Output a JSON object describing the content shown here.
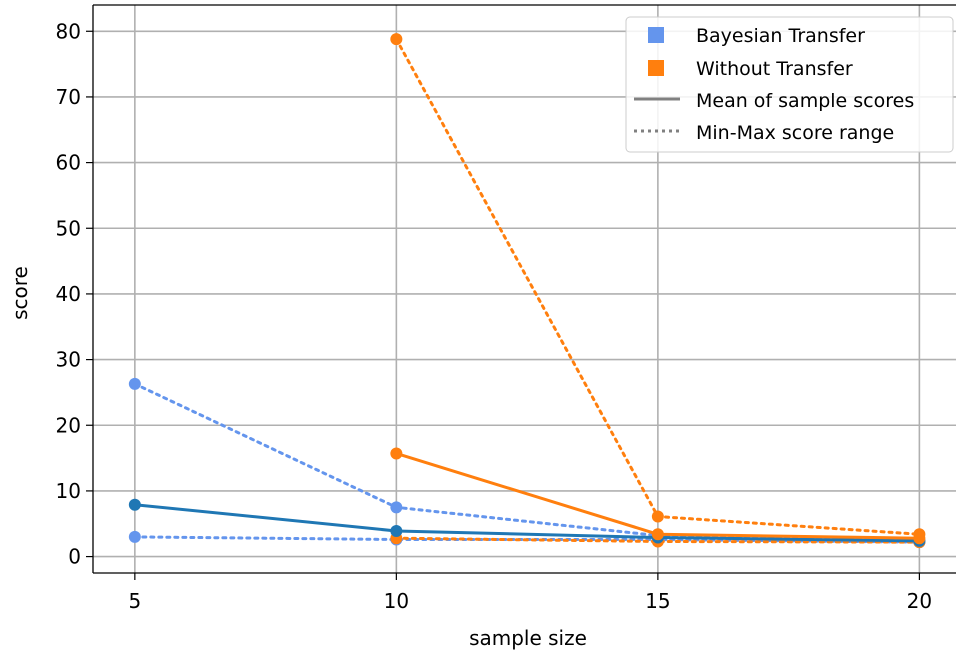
{
  "chart_data": {
    "type": "line",
    "xlabel": "sample size",
    "ylabel": "score",
    "x": [
      5,
      10,
      15,
      20
    ],
    "xticks": [
      "5",
      "10",
      "15",
      "20"
    ],
    "yticks": [
      "0",
      "10",
      "20",
      "30",
      "40",
      "50",
      "60",
      "70",
      "80"
    ],
    "xlim": [
      4.2,
      20.7
    ],
    "ylim": [
      -2.5,
      84
    ],
    "grid": true,
    "legend_position": "top-right",
    "legend": {
      "bayesian": "Bayesian Transfer",
      "without": "Without Transfer",
      "mean": "Mean of sample scores",
      "range": "Min-Max score range"
    },
    "colors": {
      "bayesian_mean": "#1f77b4",
      "bayesian_point": "#6495ed",
      "without": "#ff7f0e",
      "legend_line": "#808080",
      "grid": "#b0b0b0"
    },
    "series": [
      {
        "name": "Bayesian Transfer",
        "kind": "mean",
        "x": [
          5,
          10,
          15,
          20
        ],
        "y": [
          7.9,
          3.9,
          2.9,
          2.4
        ]
      },
      {
        "name": "Bayesian Transfer",
        "kind": "max",
        "x": [
          5,
          10,
          15,
          20
        ],
        "y": [
          26.3,
          7.5,
          3.2,
          2.4
        ]
      },
      {
        "name": "Bayesian Transfer",
        "kind": "min",
        "x": [
          5,
          10,
          15,
          20
        ],
        "y": [
          3.0,
          2.6,
          2.6,
          2.2
        ]
      },
      {
        "name": "Without Transfer",
        "kind": "mean",
        "x": [
          10,
          15,
          20
        ],
        "y": [
          15.7,
          3.4,
          2.8
        ]
      },
      {
        "name": "Without Transfer",
        "kind": "max",
        "x": [
          10,
          15,
          20
        ],
        "y": [
          78.8,
          6.1,
          3.4
        ]
      },
      {
        "name": "Without Transfer",
        "kind": "min",
        "x": [
          10,
          15,
          20
        ],
        "y": [
          2.8,
          2.3,
          2.2
        ]
      }
    ]
  }
}
